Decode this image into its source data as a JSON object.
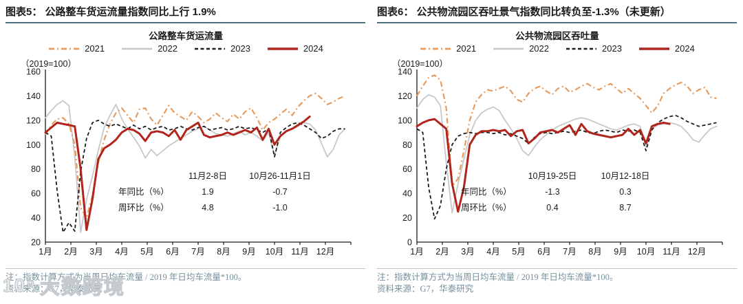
{
  "page": {
    "background": "#ffffff"
  },
  "colors": {
    "header_rule": "#4d7080",
    "notes_divider": "#b5c3ca",
    "note_text": "#76909c",
    "axis": "#1a1a1a",
    "series_2021": "#E89B5E",
    "series_2022": "#C8C8C8",
    "series_2023": "#1A1A1A",
    "series_2024": "#B0241B"
  },
  "panels": [
    {
      "header": "图表5：  公路整车货运流量指数同比上行 1.9%",
      "chart_title": "公路整车货运流量",
      "unit_label": "（2019=100）",
      "table": {
        "col_headers": [
          "11月2-8日",
          "10月26-11月1日"
        ],
        "rows": [
          {
            "label": "年同比（%）",
            "values": [
              "1.9",
              "-0.7"
            ]
          },
          {
            "label": "周环比（%）",
            "values": [
              "4.8",
              "-1.0"
            ]
          }
        ]
      },
      "note_line1": "注：指数计算方式为当周日均车流量 / 2019 年日均车流量*100。",
      "note_line2": "资料来源：G7，华泰研究"
    },
    {
      "header": "图表6：  公共物流园区吞吐景气指数同比转负至-1.3%（未更新）",
      "chart_title": "公共物流园区吞吐量",
      "unit_label": "（2019=100）",
      "table": {
        "col_headers": [
          "10月19-25日",
          "10月12-18日"
        ],
        "rows": [
          {
            "label": "年同比（%）",
            "values": [
              "-1.3",
              "0.3"
            ]
          },
          {
            "label": "周环比（%）",
            "values": [
              "0.4",
              "8.7"
            ]
          }
        ]
      },
      "note_line1": "注：指数计算方式为当周日均车流量 / 2019 年日均车流量*100。",
      "note_line2": "资料来源：G7，华泰研究"
    }
  ],
  "watermark": {
    "logo_text": "10⁹",
    "text": "大数跨境"
  },
  "chart_data": [
    {
      "type": "line",
      "title": "公路整车货运流量",
      "unit": "（2019=100）",
      "x_unit": "week-of-year (52 weeks across Jan-Dec)",
      "x_tick_labels": [
        "1月",
        "2月",
        "3月",
        "4月",
        "5月",
        "6月",
        "7月",
        "8月",
        "9月",
        "10月",
        "11月",
        "12月"
      ],
      "ylim": [
        20,
        160
      ],
      "yticks": [
        20,
        40,
        60,
        80,
        100,
        120,
        140,
        160
      ],
      "grid": false,
      "legend_position": "top",
      "series": [
        {
          "name": "2021",
          "color": "#E89B5E",
          "dash": "8 4 2 4",
          "width": 2.2,
          "z": 2,
          "values": [
            108,
            116,
            121,
            122,
            117,
            100,
            48,
            40,
            58,
            85,
            104,
            117,
            126,
            130,
            124,
            118,
            129,
            130,
            121,
            116,
            124,
            132,
            126,
            123,
            120,
            127,
            123,
            118,
            121,
            126,
            122,
            119,
            125,
            121,
            127,
            130,
            122,
            112,
            118,
            121,
            125,
            129,
            124,
            131,
            136,
            140,
            142,
            138,
            133,
            135,
            138,
            140
          ]
        },
        {
          "name": "2022",
          "color": "#C8C8C8",
          "dash": "",
          "width": 1.8,
          "z": 1,
          "values": [
            122,
            128,
            133,
            136,
            132,
            90,
            28,
            55,
            74,
            95,
            114,
            124,
            133,
            121,
            113,
            106,
            99,
            89,
            96,
            91,
            95,
            99,
            102,
            105,
            108,
            111,
            113,
            115,
            112,
            109,
            108,
            107,
            109,
            111,
            108,
            110,
            107,
            103,
            110,
            91,
            107,
            111,
            113,
            115,
            118,
            117,
            112,
            101,
            90,
            96,
            108,
            113
          ]
        },
        {
          "name": "2023",
          "color": "#1A1A1A",
          "dash": "5 3.5",
          "width": 1.8,
          "z": 3,
          "values": [
            110,
            107,
            62,
            28,
            36,
            29,
            78,
            105,
            118,
            120,
            117,
            115,
            117,
            115,
            113,
            116,
            113,
            115,
            112,
            114,
            115,
            112,
            113,
            115,
            113,
            112,
            114,
            115,
            112,
            113,
            114,
            112,
            113,
            115,
            113,
            114,
            112,
            110,
            113,
            90,
            110,
            114,
            117,
            118,
            116,
            113,
            110,
            105,
            107,
            111,
            113,
            113
          ]
        },
        {
          "name": "2024",
          "color": "#B0241B",
          "dash": "",
          "width": 3,
          "z": 4,
          "values": [
            110,
            114,
            118,
            117,
            116,
            115,
            80,
            30,
            55,
            88,
            97,
            100,
            104,
            110,
            113,
            112,
            109,
            103,
            110,
            111,
            110,
            107,
            112,
            104,
            112,
            115,
            118,
            108,
            106,
            107,
            108,
            110,
            108,
            110,
            112,
            110,
            114,
            104,
            113,
            100,
            107,
            111,
            113,
            116,
            119,
            123
          ]
        }
      ]
    },
    {
      "type": "line",
      "title": "公共物流园区吞吐量",
      "unit": "（2019=100）",
      "x_unit": "week-of-year (52 weeks across Jan-Dec)",
      "x_tick_labels": [
        "1月",
        "2月",
        "3月",
        "4月",
        "5月",
        "6月",
        "7月",
        "8月",
        "9月",
        "10月",
        "11月",
        "12月"
      ],
      "ylim": [
        0,
        140
      ],
      "yticks": [
        0,
        20,
        40,
        60,
        80,
        100,
        120,
        140
      ],
      "grid": false,
      "legend_position": "top",
      "series": [
        {
          "name": "2021",
          "color": "#E89B5E",
          "dash": "8 4 2 4",
          "width": 2.2,
          "z": 2,
          "values": [
            120,
            128,
            135,
            137,
            133,
            110,
            46,
            52,
            75,
            100,
            115,
            121,
            125,
            124,
            126,
            128,
            124,
            117,
            115,
            122,
            126,
            128,
            124,
            121,
            126,
            128,
            123,
            125,
            128,
            130,
            127,
            125,
            128,
            130,
            126,
            122,
            126,
            122,
            118,
            112,
            106,
            112,
            122,
            126,
            129,
            131,
            128,
            122,
            125,
            127,
            119,
            118
          ]
        },
        {
          "name": "2022",
          "color": "#C8C8C8",
          "dash": "",
          "width": 1.8,
          "z": 1,
          "values": [
            110,
            117,
            121,
            119,
            112,
            65,
            24,
            48,
            68,
            88,
            100,
            106,
            109,
            111,
            108,
            100,
            93,
            85,
            75,
            71,
            78,
            84,
            88,
            92,
            95,
            97,
            99,
            101,
            102,
            101,
            99,
            97,
            95,
            93,
            92,
            94,
            96,
            97,
            95,
            78,
            93,
            96,
            97,
            98,
            97,
            95,
            90,
            84,
            82,
            88,
            93,
            95
          ]
        },
        {
          "name": "2023",
          "color": "#1A1A1A",
          "dash": "5 3.5",
          "width": 1.8,
          "z": 3,
          "values": [
            93,
            90,
            45,
            19,
            30,
            60,
            80,
            87,
            89,
            90,
            89,
            90,
            90,
            89,
            90,
            88,
            89,
            87,
            85,
            81,
            86,
            89,
            90,
            89,
            90,
            91,
            90,
            91,
            92,
            90,
            89,
            91,
            92,
            91,
            90,
            92,
            91,
            92,
            90,
            75,
            92,
            98,
            101,
            103,
            104,
            102,
            99,
            97,
            95,
            96,
            97,
            98
          ]
        },
        {
          "name": "2024",
          "color": "#B0241B",
          "dash": "",
          "width": 3,
          "z": 4,
          "values": [
            95,
            98,
            100,
            101,
            97,
            93,
            48,
            25,
            45,
            80,
            88,
            91,
            91,
            92,
            91,
            92,
            87,
            91,
            92,
            81,
            85,
            90,
            91,
            92,
            90,
            93,
            96,
            88,
            97,
            91,
            89,
            88,
            87,
            86,
            87,
            88,
            93,
            88,
            92,
            81,
            95,
            97,
            98,
            97
          ]
        }
      ]
    }
  ]
}
